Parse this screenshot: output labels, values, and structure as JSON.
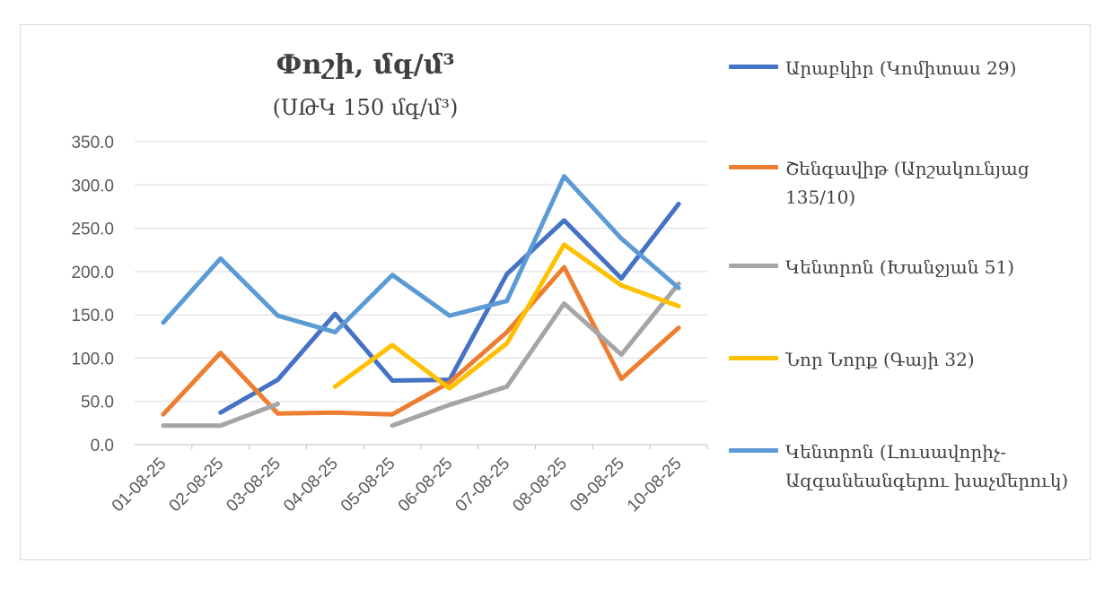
{
  "chart_data": {
    "type": "line",
    "title": "Փոշի, մգ/մ³",
    "subtitle": "(ՍԹԿ 150 մգ/մ³)",
    "xlabel": "",
    "ylabel": "",
    "ylim": [
      0,
      350
    ],
    "yticks": [
      "0.0",
      "50.0",
      "100.0",
      "150.0",
      "200.0",
      "250.0",
      "300.0",
      "350.0"
    ],
    "ytick_values": [
      0,
      50,
      100,
      150,
      200,
      250,
      300,
      350
    ],
    "categories": [
      "01-08-25",
      "02-08-25",
      "03-08-25",
      "04-08-25",
      "05-08-25",
      "06-08-25",
      "07-08-25",
      "08-08-25",
      "09-08-25",
      "10-08-25"
    ],
    "grid": true,
    "legend_position": "right",
    "series": [
      {
        "name": "Արաբկիր (Կոմիտաս 29)",
        "color": "#4472c4",
        "values": [
          null,
          37,
          75,
          151,
          74,
          75,
          197,
          259,
          192,
          278
        ]
      },
      {
        "name": "Շենգավիթ (Արշակունյաց 135/10)",
        "color": "#ed7d31",
        "values": [
          35,
          106,
          36,
          37,
          35,
          72,
          130,
          205,
          76,
          135
        ]
      },
      {
        "name": "Կենտրոն (Խանջյան 51)",
        "color": "#a5a5a5",
        "values": [
          22,
          22,
          47,
          null,
          22,
          46,
          67,
          163,
          104,
          186
        ]
      },
      {
        "name": "Նոր Նորք (Գայի 32)",
        "color": "#ffc000",
        "values": [
          null,
          null,
          null,
          67,
          115,
          65,
          117,
          231,
          184,
          160
        ]
      },
      {
        "name": "Կենտրոն (Լուսավորիչ-Ազգանեանգերու խաչմերուկ)",
        "color": "#5b9bd5",
        "values": [
          141,
          215,
          149,
          130,
          196,
          149,
          166,
          310,
          238,
          181
        ]
      }
    ]
  },
  "legend": {
    "items": [
      {
        "label": "Արաբկիր (Կոմիտաս 29)",
        "color": "#4472c4"
      },
      {
        "label": "Շենգավիթ (Արշակունյաց 135/10)",
        "color": "#ed7d31"
      },
      {
        "label": "Կենտրոն (Խանջյան 51)",
        "color": "#a5a5a5"
      },
      {
        "label": "Նոր Նորք (Գայի 32)",
        "color": "#ffc000"
      },
      {
        "label": "Կենտրոն (Լուսավորիչ-Ազգանեանգերու խաչմերուկ)",
        "color": "#5b9bd5"
      }
    ]
  }
}
